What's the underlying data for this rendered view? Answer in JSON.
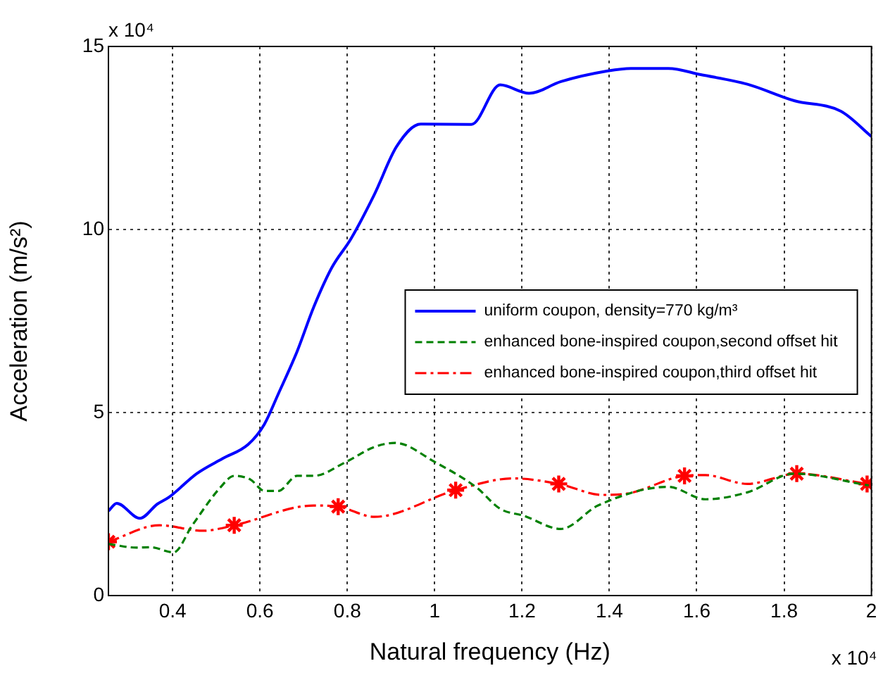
{
  "chart_data": {
    "type": "line",
    "xlabel": "Natural frequency (Hz)",
    "ylabel": "Acceleration (m/s²)",
    "annotations": [
      "x 10⁴",
      "x 10⁴"
    ],
    "xlim": [
      0.253,
      2
    ],
    "xticks": [
      0.4,
      0.6,
      0.8,
      1,
      1.2,
      1.4,
      1.6,
      1.8,
      2
    ],
    "ylim": [
      0,
      15
    ],
    "yticks": [
      0,
      5,
      10,
      15
    ],
    "grid": true,
    "legend": "right",
    "series": [
      {
        "name": "uniform coupon, density=770 kg/m³",
        "color": "#0000ff",
        "line_style": "solid",
        "x": [
          0.253,
          0.272,
          0.325,
          0.365,
          0.392,
          0.455,
          0.514,
          0.573,
          0.61,
          0.642,
          0.685,
          0.723,
          0.765,
          0.808,
          0.862,
          0.913,
          0.968,
          1.084,
          1.15,
          1.216,
          1.289,
          1.396,
          1.449,
          1.535,
          1.609,
          1.716,
          1.823,
          1.93,
          2.0
        ],
        "values": [
          2.31,
          2.52,
          2.11,
          2.5,
          2.69,
          3.33,
          3.74,
          4.13,
          4.68,
          5.51,
          6.67,
          7.88,
          8.97,
          9.74,
          10.96,
          12.27,
          12.88,
          12.87,
          13.95,
          13.72,
          14.04,
          14.33,
          14.4,
          14.4,
          14.23,
          13.97,
          13.52,
          13.23,
          12.54
        ]
      },
      {
        "name": "enhanced bone-inspired coupon,second offset hit",
        "color": "#008000",
        "line_style": "dashed",
        "x": [
          0.253,
          0.317,
          0.35,
          0.402,
          0.445,
          0.509,
          0.541,
          0.578,
          0.61,
          0.642,
          0.685,
          0.723,
          0.797,
          0.862,
          0.91,
          1.0,
          1.096,
          1.15,
          1.204,
          1.289,
          1.374,
          1.535,
          1.62,
          1.716,
          1.823,
          1.994
        ],
        "values": [
          1.41,
          1.31,
          1.32,
          1.18,
          1.92,
          2.95,
          3.27,
          3.17,
          2.86,
          2.86,
          3.27,
          3.27,
          3.65,
          4.06,
          4.17,
          3.65,
          2.95,
          2.37,
          2.18,
          1.82,
          2.46,
          2.97,
          2.63,
          2.82,
          3.33,
          3.01
        ]
      },
      {
        "name": "enhanced bone-inspired coupon,third offset hit",
        "color": "#ff0000",
        "line_style": "dashdot",
        "x": [
          0.253,
          0.37,
          0.47,
          0.541,
          0.723,
          0.779,
          0.862,
          1.048,
          1.18,
          1.284,
          1.384,
          1.438,
          1.572,
          1.62,
          1.716,
          1.829,
          1.99
        ],
        "values": [
          1.47,
          1.92,
          1.77,
          1.92,
          2.46,
          2.43,
          2.15,
          2.88,
          3.2,
          3.05,
          2.75,
          2.78,
          3.27,
          3.29,
          3.05,
          3.33,
          3.05
        ]
      },
      {
        "type": "scatter",
        "color": "#ff0000",
        "marker": "cross",
        "x": [
          0.253,
          0.541,
          0.779,
          1.048,
          1.284,
          1.572,
          1.829,
          1.99
        ],
        "values": [
          1.47,
          1.92,
          2.43,
          2.88,
          3.05,
          3.27,
          3.33,
          3.05
        ]
      }
    ]
  }
}
